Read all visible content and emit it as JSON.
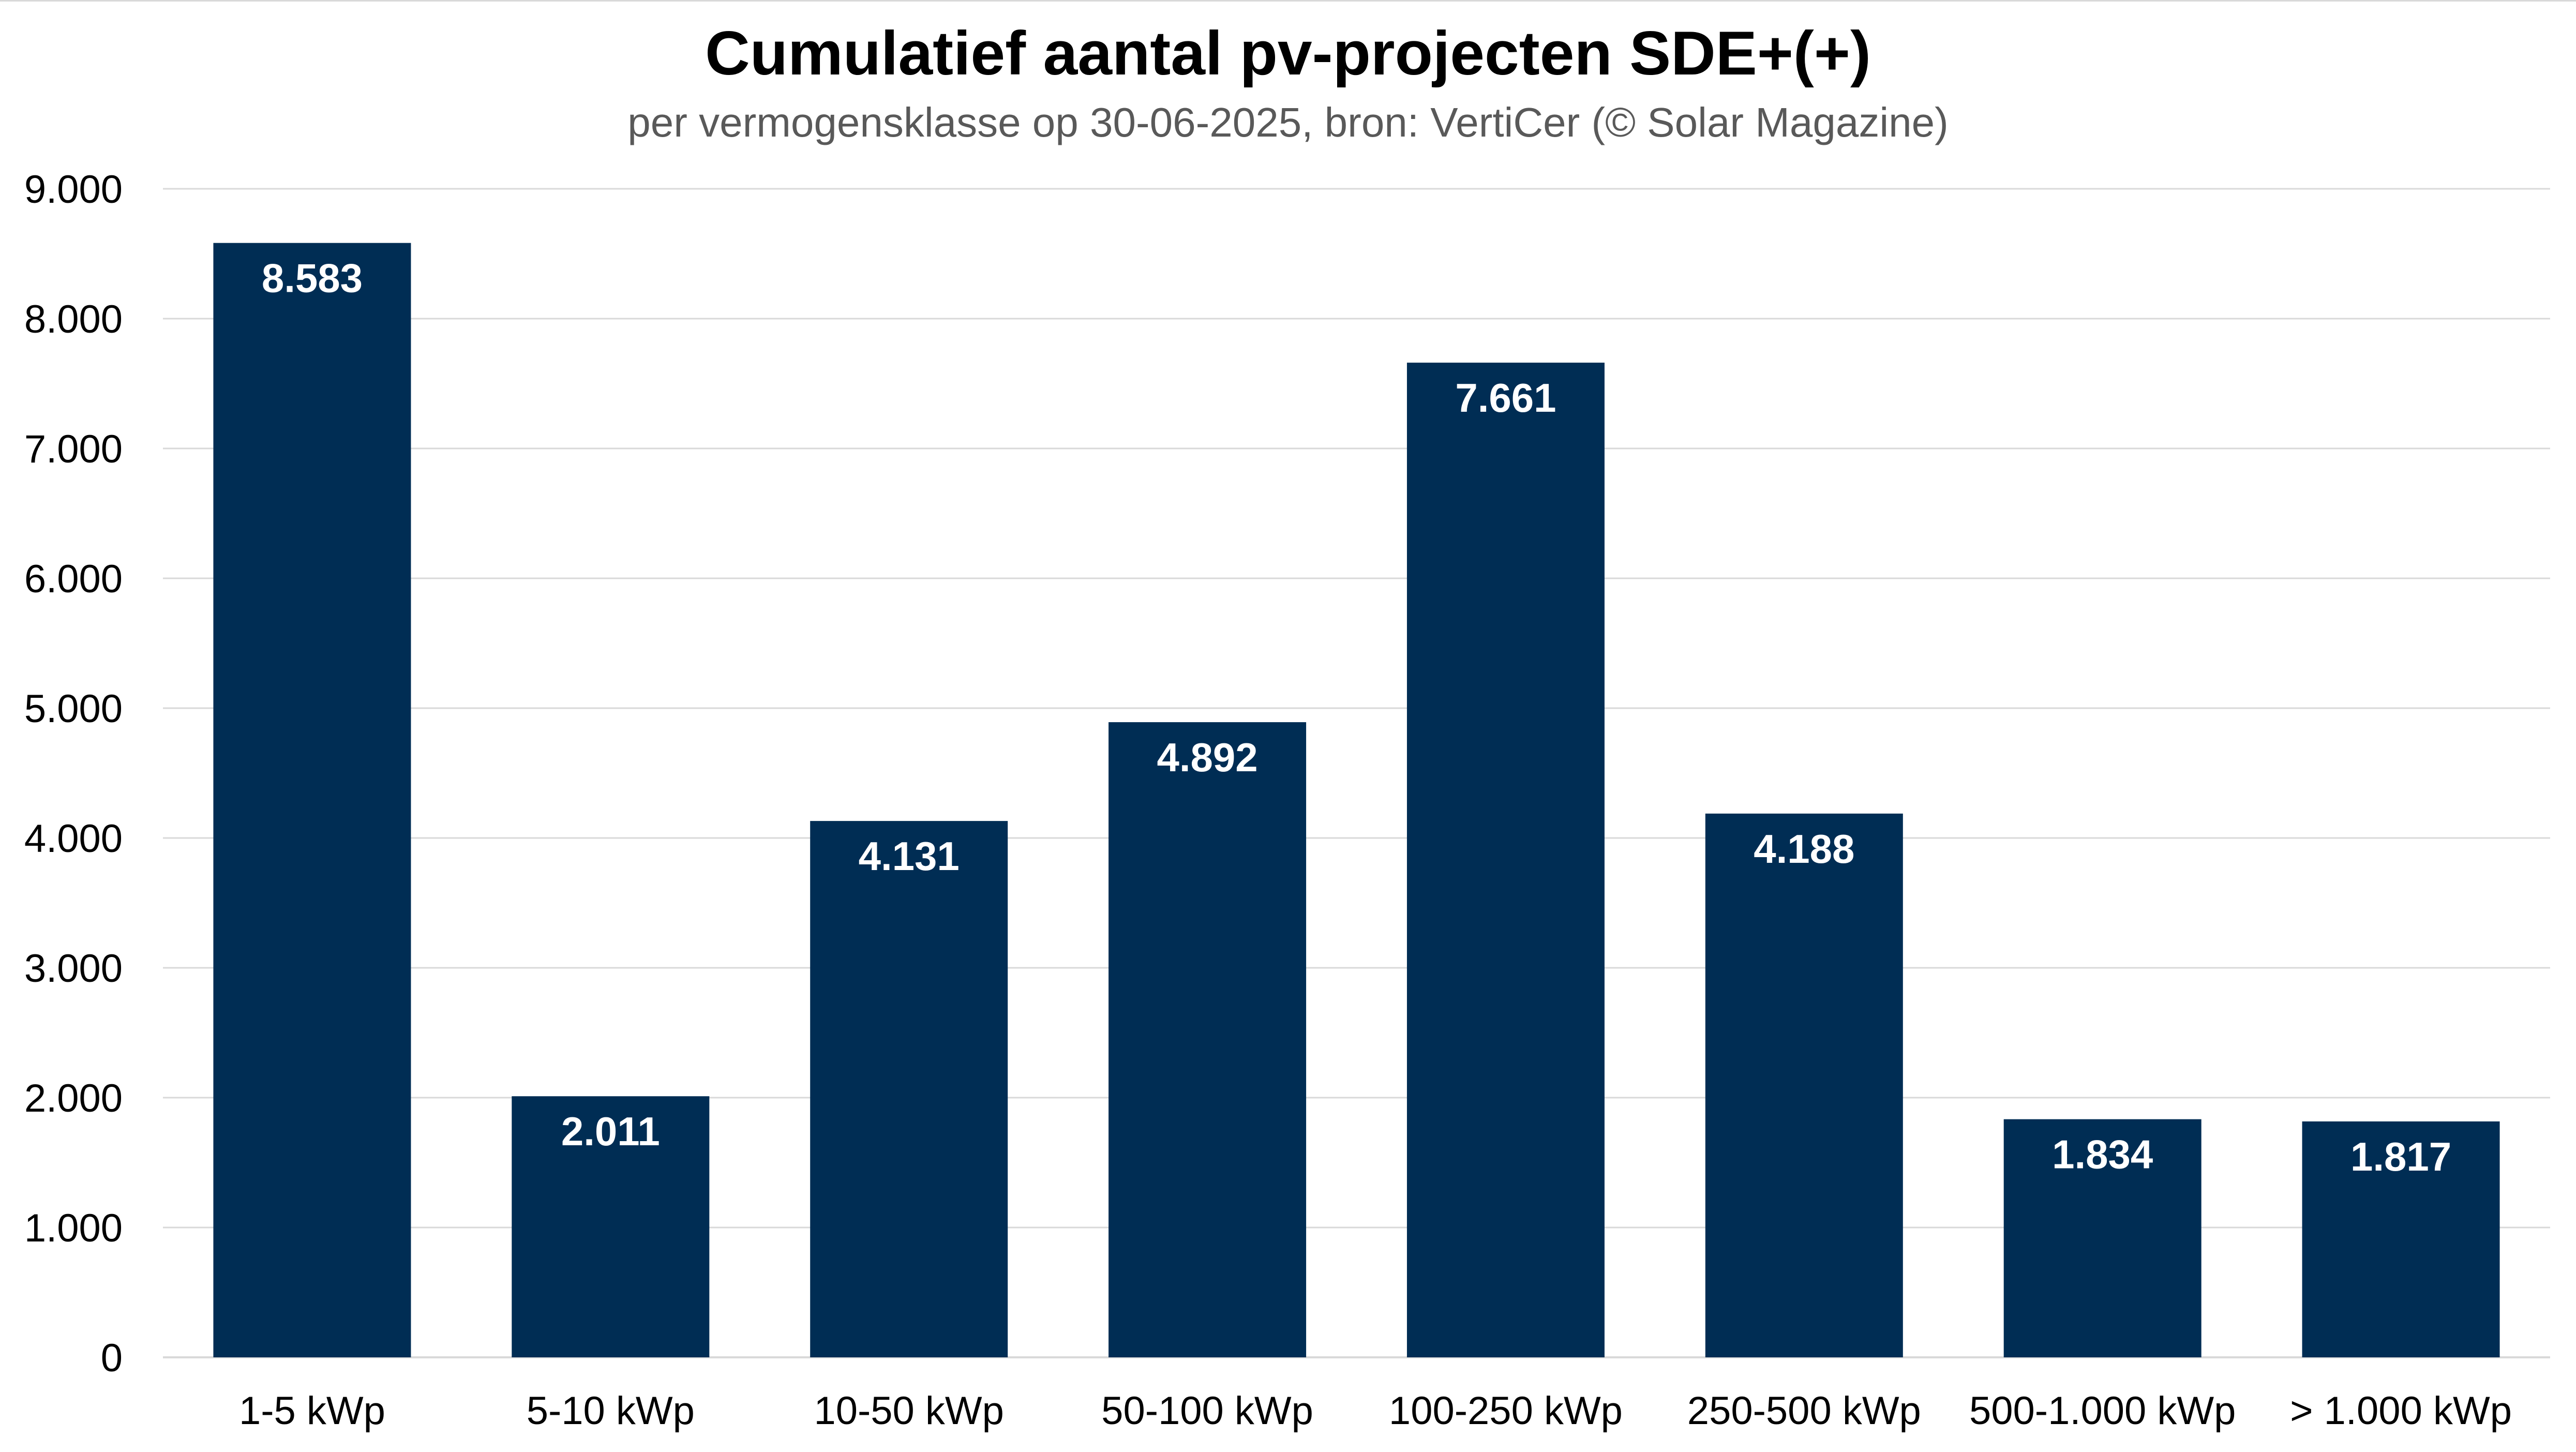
{
  "chart_data": {
    "type": "bar",
    "title": "Cumulatief aantal pv-projecten SDE+(+)",
    "subtitle": "per vermogensklasse op 30-06-2025, bron: VertiCer (© Solar Magazine)",
    "categories": [
      "1-5 kWp",
      "5-10 kWp",
      "10-50 kWp",
      "50-100 kWp",
      "100-250 kWp",
      "250-500 kWp",
      "500-1.000 kWp",
      "> 1.000 kWp"
    ],
    "values": [
      8583,
      2011,
      4131,
      4892,
      7661,
      4188,
      1834,
      1817
    ],
    "data_labels": [
      "8.583",
      "2.011",
      "4.131",
      "4.892",
      "7.661",
      "4.188",
      "1.834",
      "1.817"
    ],
    "y_ticks": [
      0,
      1000,
      2000,
      3000,
      4000,
      5000,
      6000,
      7000,
      8000,
      9000
    ],
    "y_tick_labels": [
      "0",
      "1.000",
      "2.000",
      "3.000",
      "4.000",
      "5.000",
      "6.000",
      "7.000",
      "8.000",
      "9.000"
    ],
    "ylim": [
      0,
      9000
    ],
    "xlabel": "",
    "ylabel": "",
    "grid": true,
    "legend": "none",
    "colors": {
      "bar": "#002d54",
      "grid": "#d9d9d9",
      "baseline": "#d9d9d9",
      "data_label": "#ffffff",
      "subtitle": "#595959"
    }
  }
}
